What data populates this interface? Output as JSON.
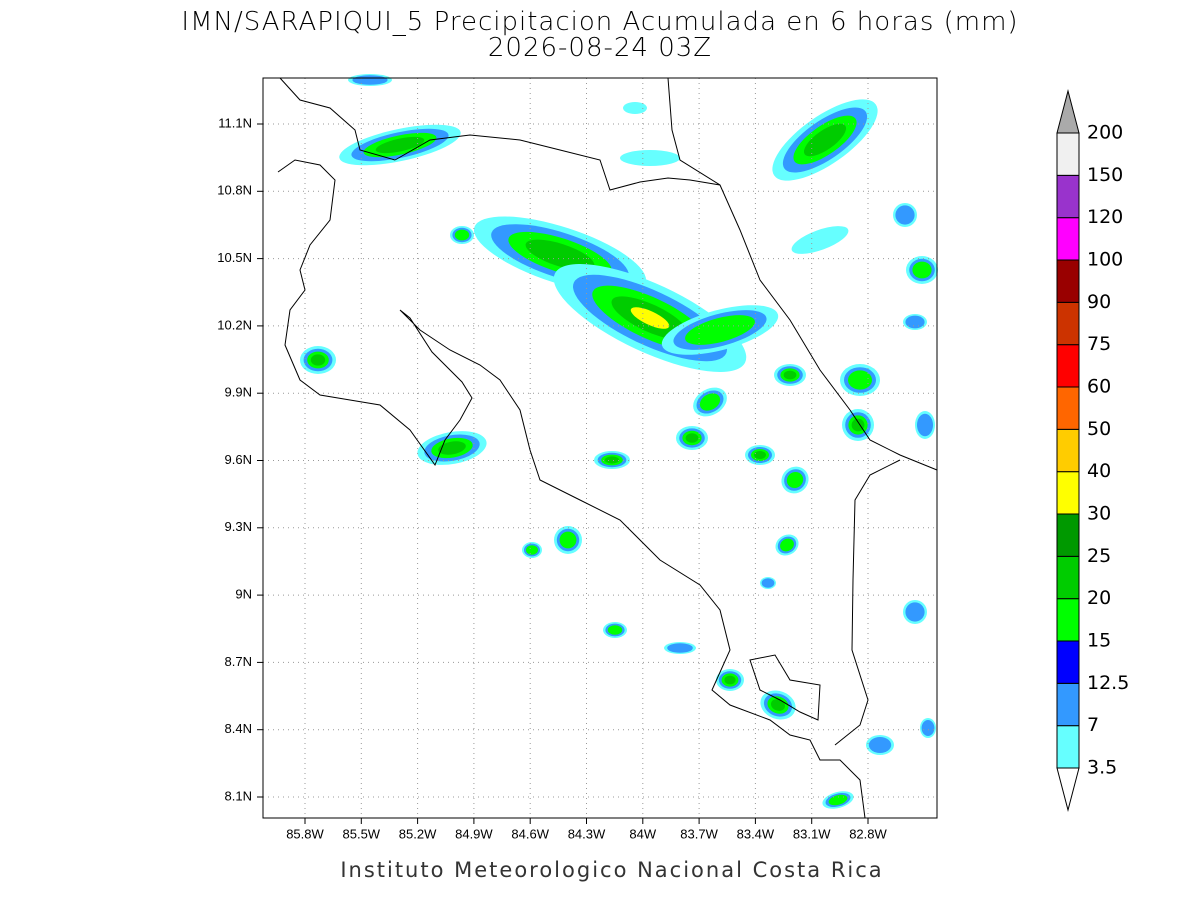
{
  "title": [
    "IMN/SARAPIQUI_5 Precipitacion Acumulada en 6 horas (mm)",
    "2026-08-24 03Z"
  ],
  "x_ticks": [
    "85.8W",
    "85.5W",
    "85.2W",
    "84.9W",
    "84.6W",
    "84.3W",
    "84W",
    "83.7W",
    "83.4W",
    "83.1W",
    "82.8W"
  ],
  "y_ticks": [
    "11.1N",
    "10.8N",
    "10.5N",
    "10.2N",
    "9.9N",
    "9.6N",
    "9.3N",
    "9N",
    "8.7N",
    "8.4N",
    "8.1N"
  ],
  "colorbar": {
    "labels": [
      "3.5",
      "7",
      "12.5",
      "15",
      "20",
      "25",
      "30",
      "40",
      "50",
      "60",
      "75",
      "90",
      "100",
      "120",
      "150",
      "200"
    ],
    "colors": [
      "#66ffff",
      "#3399ff",
      "#0000ff",
      "#00ff00",
      "#00cc00",
      "#009900",
      "#ffff00",
      "#ffcc00",
      "#ff6600",
      "#ff0000",
      "#cc3300",
      "#990000",
      "#ff00ff",
      "#9933cc",
      "#f0f0f0"
    ],
    "under_color": "#ffffff",
    "over_color": "#aaaaaa"
  },
  "footer": "Instituto Meteorologico Nacional Costa Rica"
}
